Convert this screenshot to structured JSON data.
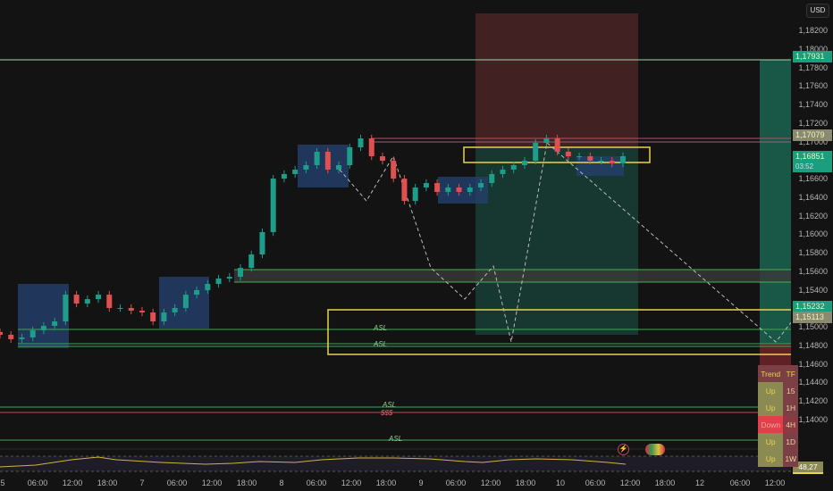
{
  "currency_button": "USD",
  "chart_data": {
    "type": "candlestick",
    "price_axis": {
      "ticks": [
        "1,18200",
        "1,18000",
        "1,17800",
        "1,17600",
        "1,17400",
        "1,17200",
        "1,17000",
        "1,16600",
        "1,16400",
        "1,16200",
        "1,16000",
        "1,15800",
        "1,15600",
        "1,15400",
        "1,15000",
        "1,14800",
        "1,14600",
        "1,14400",
        "1,14200",
        "1,14000"
      ],
      "range": [
        1.1395,
        1.1835
      ]
    },
    "time_axis": {
      "ticks": [
        "5",
        "06:00",
        "12:00",
        "18:00",
        "7",
        "06:00",
        "12:00",
        "18:00",
        "8",
        "06:00",
        "12:00",
        "18:00",
        "9",
        "06:00",
        "12:00",
        "18:00",
        "10",
        "06:00",
        "12:00",
        "18:00",
        "12",
        "06:00",
        "12:00"
      ]
    },
    "closes": [
      1.14923,
      1.14875,
      1.14894,
      1.14971,
      1.15019,
      1.15067,
      1.15356,
      1.1526,
      1.15308,
      1.15356,
      1.15212,
      1.15212,
      1.15183,
      1.15164,
      1.15067,
      1.15164,
      1.15212,
      1.15356,
      1.15405,
      1.15472,
      1.1553,
      1.15549,
      1.15645,
      1.1579,
      1.16031,
      1.16609,
      1.16658,
      1.16706,
      1.16754,
      1.16899,
      1.16706,
      1.16754,
      1.16947,
      1.17043,
      1.1685,
      1.16802,
      1.16609,
      1.16368,
      1.16513,
      1.16561,
      1.16465,
      1.16513,
      1.16465,
      1.16513,
      1.16561,
      1.16658,
      1.16706,
      1.16754,
      1.16802,
      1.16995,
      1.17043,
      1.16899,
      1.1685,
      1.1685,
      1.16802,
      1.16802,
      1.16773,
      1.16851
    ],
    "price_tags": [
      {
        "value": "1,17931",
        "color": "#1a9e7e"
      },
      {
        "value": "1,17079",
        "color": "#8a8a70"
      },
      {
        "value": "1,16851",
        "sub": "03:52",
        "color": "#1a9e7e"
      },
      {
        "value": "1,15232",
        "color": "#1a9e7e"
      },
      {
        "value": "1,15113",
        "color": "#8a8a70"
      }
    ],
    "level_labels": [
      "ASL",
      "ASL",
      "ASL",
      "$$$",
      "ASL"
    ],
    "rsi_value": "48,27",
    "colors": {
      "up": "#1e9e8a",
      "down": "#e05050",
      "zone": "#2a4a7a",
      "target": "#1f5f50",
      "stop": "#5a2a2a",
      "highlight": "#e8d44d"
    }
  },
  "trend_table": {
    "headers": [
      "Trend",
      "TF"
    ],
    "rows": [
      [
        "Up",
        "15"
      ],
      [
        "Up",
        "1H"
      ],
      [
        "Down",
        "4H"
      ],
      [
        "Up",
        "1D"
      ],
      [
        "Up",
        "1W"
      ]
    ]
  }
}
